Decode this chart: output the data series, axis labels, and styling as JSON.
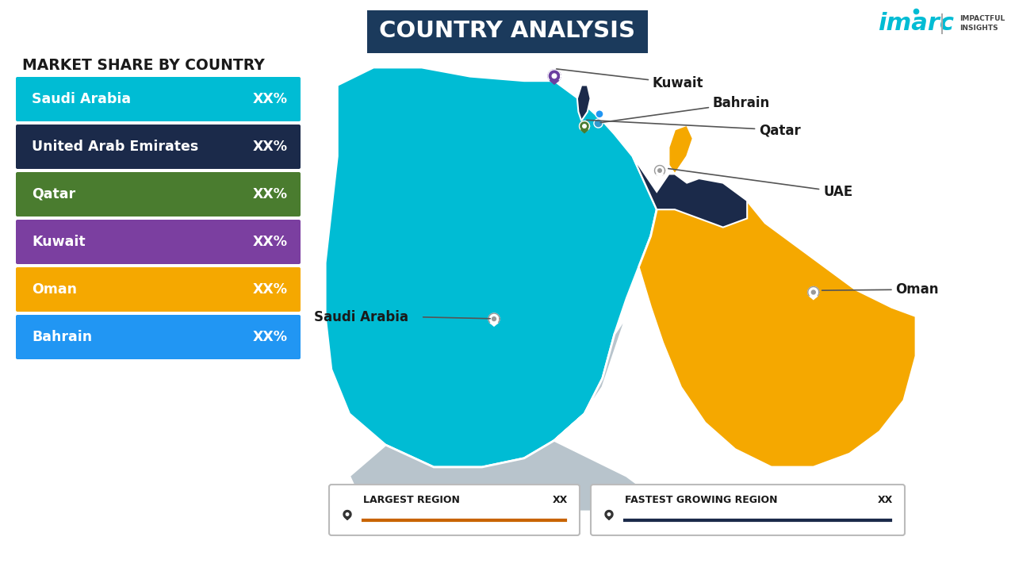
{
  "title": "COUNTRY ANALYSIS",
  "subtitle": "MARKET SHARE BY COUNTRY",
  "countries": [
    "Saudi Arabia",
    "United Arab Emirates",
    "Qatar",
    "Kuwait",
    "Oman",
    "Bahrain"
  ],
  "values": [
    "XX%",
    "XX%",
    "XX%",
    "XX%",
    "XX%",
    "XX%"
  ],
  "bar_colors": [
    "#00BCD4",
    "#1B2A4A",
    "#4A7C2F",
    "#7B3FA0",
    "#F5A800",
    "#2196F3"
  ],
  "background_color": "#FFFFFF",
  "title_box_color": "#1B3A5C",
  "title_text_color": "#FFFFFF",
  "legend_largest": "LARGEST REGION",
  "legend_fastest": "FASTEST GROWING REGION",
  "legend_value": "XX",
  "map_colors": {
    "saudi_arabia": "#00BCD4",
    "uae": "#1B2A4A",
    "qatar": "#1B2A4A",
    "kuwait": "#00BCD4",
    "oman": "#F5A800",
    "bahrain": "#2196F3",
    "yemen": "#B8C4CC",
    "background": "#E8EFF5"
  },
  "imarc_color": "#00BCD4",
  "pin_colors": {
    "kuwait": "#6B3FA0",
    "bahrain": "#2196F3",
    "qatar": "#4A7C2F",
    "uae": "#FFFFFF",
    "oman": "#FFFFFF",
    "saudi_arabia": "#FFFFFF"
  }
}
